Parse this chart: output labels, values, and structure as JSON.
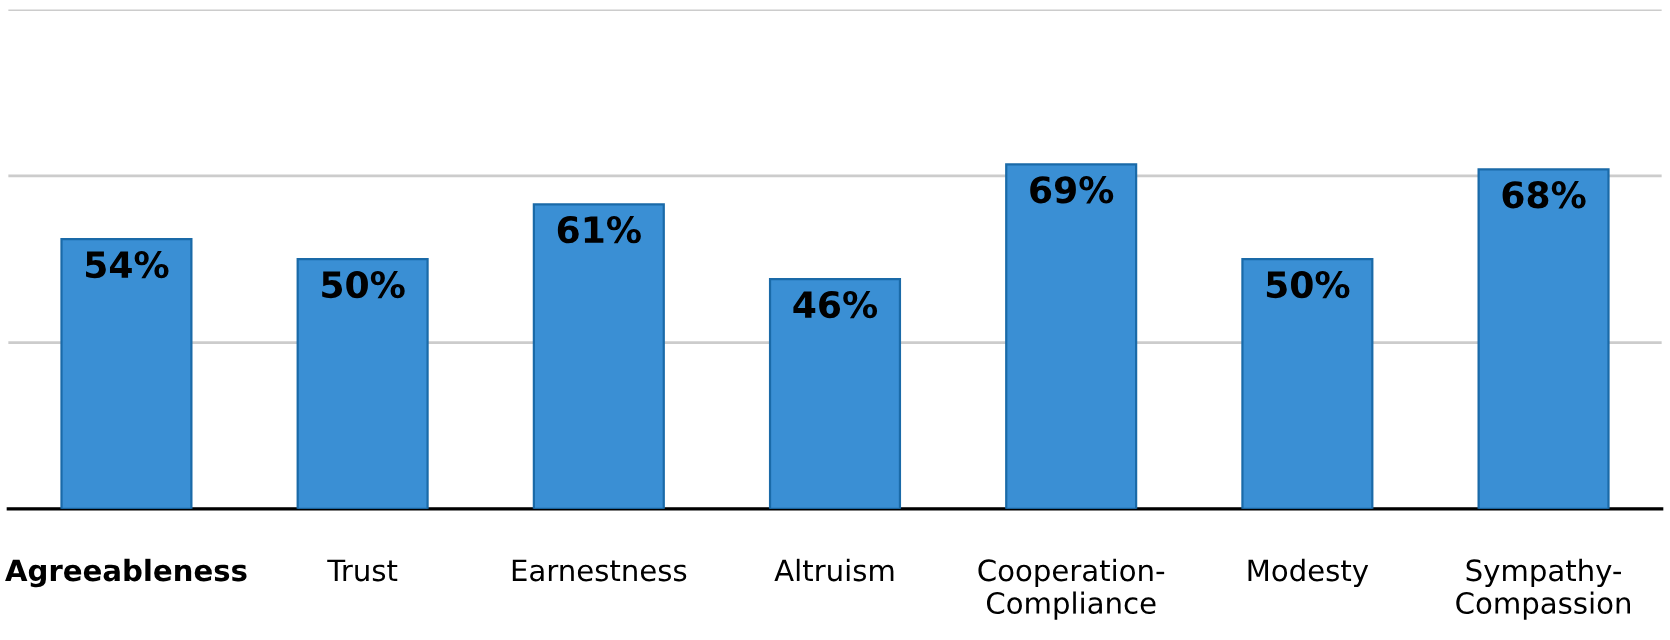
{
  "chart_data": {
    "type": "bar",
    "categories": [
      "Agreeableness",
      "Trust",
      "Earnestness",
      "Altruism",
      "Cooperation-\nCompliance",
      "Modesty",
      "Sympathy-\nCompassion"
    ],
    "values": [
      54,
      50,
      61,
      46,
      69,
      50,
      68
    ],
    "value_labels": [
      "54%",
      "50%",
      "61%",
      "46%",
      "69%",
      "50%",
      "68%"
    ],
    "color": "#3a8fd4",
    "ylim": [
      0,
      100
    ],
    "yticks": [
      {
        "value": 0,
        "label": null
      },
      {
        "value": 33.3,
        "label": null
      },
      {
        "value": 66.7,
        "label": null
      },
      {
        "value": 100,
        "label": null
      }
    ],
    "grid": "y",
    "tick_labels": "x"
  }
}
